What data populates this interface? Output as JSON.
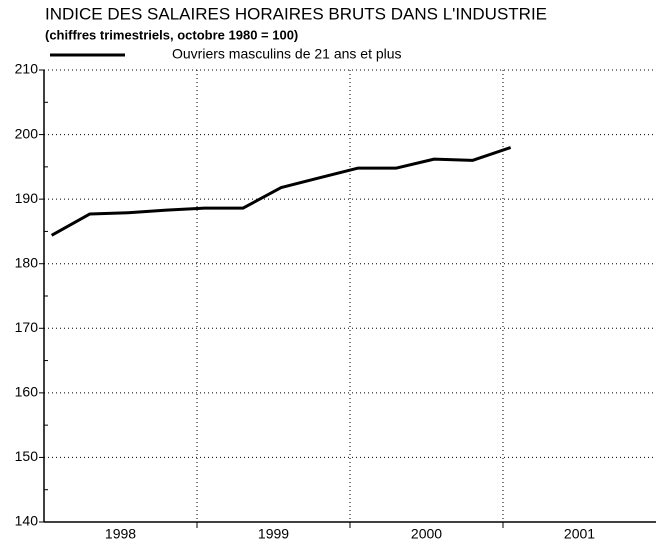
{
  "chart_data": {
    "type": "line",
    "title": "INDICE DES SALAIRES HORAIRES BRUTS DANS L'INDUSTRIE",
    "subtitle": "(chiffres trimestriels, octobre 1980 = 100)",
    "x": [
      1998.05,
      1998.3,
      1998.55,
      1998.8,
      1999.05,
      1999.3,
      1999.55,
      1999.8,
      2000.05,
      2000.3,
      2000.55,
      2000.8,
      2001.05
    ],
    "series": [
      {
        "name": "Ouvriers masculins de 21 ans et plus",
        "color": "#000000",
        "values": [
          184.4,
          187.7,
          187.9,
          188.3,
          188.6,
          188.6,
          191.8,
          193.3,
          194.8,
          194.8,
          196.2,
          196.0,
          198.0
        ]
      }
    ],
    "year_labels": [
      "1998",
      "1999",
      "2000",
      "2001"
    ],
    "xlim": [
      1998,
      2002
    ],
    "xticks": [
      1999,
      2000,
      2001
    ],
    "ylim": [
      140,
      210
    ],
    "yticks": [
      140,
      150,
      160,
      170,
      180,
      190,
      200,
      210
    ],
    "grid": true
  }
}
